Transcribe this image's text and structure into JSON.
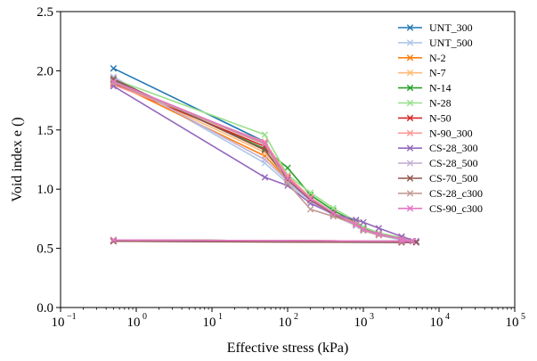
{
  "chart_data": {
    "type": "line",
    "title": "",
    "xlabel": "Effective stress (kPa)",
    "ylabel": "Void index e ()",
    "x_scale": "log",
    "xlim": [
      0.1,
      100000
    ],
    "ylim": [
      0.0,
      2.5
    ],
    "x_ticks": [
      {
        "value": 0.1,
        "base": "10",
        "exp": "−1"
      },
      {
        "value": 1,
        "base": "10",
        "exp": "0"
      },
      {
        "value": 10,
        "base": "10",
        "exp": "1"
      },
      {
        "value": 100,
        "base": "10",
        "exp": "2"
      },
      {
        "value": 1000,
        "base": "10",
        "exp": "3"
      },
      {
        "value": 10000,
        "base": "10",
        "exp": "4"
      },
      {
        "value": 100000,
        "base": "10",
        "exp": "5"
      }
    ],
    "y_ticks": [
      {
        "value": 0.0,
        "label": "0.0"
      },
      {
        "value": 0.5,
        "label": "0.5"
      },
      {
        "value": 1.0,
        "label": "1.0"
      },
      {
        "value": 1.5,
        "label": "1.5"
      },
      {
        "value": 2.0,
        "label": "2.0"
      },
      {
        "value": 2.5,
        "label": "2.5"
      }
    ],
    "grid": false,
    "legend_position": "top-right",
    "marker": "x",
    "series": [
      {
        "name": "UNT_300",
        "color": "#1f77b4",
        "x": [
          0.5,
          50,
          100,
          200,
          400,
          800,
          1000,
          1600,
          3200,
          4500,
          3200,
          0.5
        ],
        "y": [
          2.02,
          1.4,
          1.1,
          0.92,
          0.8,
          0.7,
          0.66,
          0.62,
          0.58,
          0.56,
          0.56,
          0.57
        ]
      },
      {
        "name": "UNT_500",
        "color": "#aec7e8",
        "x": [
          0.5,
          50,
          100,
          200,
          400,
          800,
          1000,
          1600,
          3200,
          5000,
          3200,
          0.5
        ],
        "y": [
          1.95,
          1.22,
          1.05,
          0.9,
          0.78,
          0.69,
          0.65,
          0.61,
          0.57,
          0.55,
          0.55,
          0.56
        ]
      },
      {
        "name": "N-2",
        "color": "#ff7f0e",
        "x": [
          0.5,
          50,
          100,
          200,
          400,
          800,
          1000,
          1600,
          3200,
          4500,
          3200,
          0.5
        ],
        "y": [
          1.9,
          1.28,
          1.08,
          0.91,
          0.79,
          0.7,
          0.66,
          0.62,
          0.58,
          0.56,
          0.56,
          0.57
        ]
      },
      {
        "name": "N-7",
        "color": "#ffbb78",
        "x": [
          0.5,
          50,
          100,
          200,
          400,
          800,
          1000,
          1600,
          3200,
          4500,
          3200,
          0.5
        ],
        "y": [
          1.91,
          1.31,
          1.09,
          0.91,
          0.79,
          0.7,
          0.66,
          0.62,
          0.58,
          0.56,
          0.56,
          0.57
        ]
      },
      {
        "name": "N-14",
        "color": "#2ca02c",
        "x": [
          0.5,
          50,
          100,
          200,
          400,
          800,
          1000,
          1600,
          3200,
          4500,
          3200,
          0.5
        ],
        "y": [
          1.92,
          1.34,
          1.18,
          0.95,
          0.82,
          0.72,
          0.67,
          0.63,
          0.58,
          0.56,
          0.56,
          0.57
        ]
      },
      {
        "name": "N-28",
        "color": "#98df8a",
        "x": [
          0.5,
          50,
          100,
          200,
          400,
          800,
          1000,
          1600,
          3200,
          4500,
          3200,
          0.5
        ],
        "y": [
          1.93,
          1.46,
          1.12,
          0.97,
          0.84,
          0.73,
          0.68,
          0.63,
          0.59,
          0.56,
          0.56,
          0.57
        ]
      },
      {
        "name": "N-50",
        "color": "#d62728",
        "x": [
          0.5,
          50,
          100,
          200,
          400,
          800,
          1000,
          1600,
          3200,
          4500,
          3200,
          0.5
        ],
        "y": [
          1.89,
          1.36,
          1.1,
          0.92,
          0.8,
          0.71,
          0.66,
          0.62,
          0.58,
          0.56,
          0.56,
          0.57
        ]
      },
      {
        "name": "N-90_300",
        "color": "#ff9896",
        "x": [
          0.5,
          50,
          100,
          200,
          400,
          800,
          1000,
          1600,
          3200,
          4500,
          3200,
          0.5
        ],
        "y": [
          1.88,
          1.4,
          1.11,
          0.93,
          0.8,
          0.71,
          0.66,
          0.62,
          0.58,
          0.56,
          0.56,
          0.57
        ]
      },
      {
        "name": "CS-28_300",
        "color": "#9467bd",
        "x": [
          0.5,
          50,
          100,
          200,
          400,
          800,
          1000,
          1600,
          3200,
          5000,
          3200,
          0.5
        ],
        "y": [
          1.87,
          1.1,
          1.03,
          0.88,
          0.79,
          0.74,
          0.72,
          0.67,
          0.6,
          0.56,
          0.56,
          0.57
        ]
      },
      {
        "name": "CS-28_500",
        "color": "#c5b0d5",
        "x": [
          0.5,
          50,
          100,
          200,
          400,
          800,
          1000,
          1600,
          3200,
          5000,
          3200,
          0.5
        ],
        "y": [
          1.94,
          1.25,
          1.07,
          0.9,
          0.79,
          0.7,
          0.66,
          0.62,
          0.58,
          0.55,
          0.55,
          0.56
        ]
      },
      {
        "name": "CS-70_500",
        "color": "#8c564b",
        "x": [
          0.5,
          50,
          100,
          200,
          400,
          800,
          1000,
          1600,
          3200,
          5000,
          3200,
          0.5
        ],
        "y": [
          1.93,
          1.33,
          1.08,
          0.91,
          0.79,
          0.7,
          0.66,
          0.62,
          0.58,
          0.55,
          0.55,
          0.56
        ]
      },
      {
        "name": "CS-28_c300",
        "color": "#c49c94",
        "x": [
          0.5,
          50,
          100,
          200,
          400,
          800,
          1000,
          1600,
          3200,
          4500,
          3200,
          0.5
        ],
        "y": [
          1.9,
          1.38,
          1.05,
          0.83,
          0.77,
          0.7,
          0.65,
          0.61,
          0.58,
          0.56,
          0.56,
          0.57
        ]
      },
      {
        "name": "CS-90_c300",
        "color": "#e377c2",
        "x": [
          0.5,
          50,
          100,
          200,
          400,
          800,
          1000,
          1600,
          3200,
          4500,
          3200,
          0.5
        ],
        "y": [
          1.91,
          1.39,
          1.09,
          0.92,
          0.8,
          0.7,
          0.66,
          0.62,
          0.58,
          0.56,
          0.56,
          0.57
        ]
      }
    ]
  }
}
